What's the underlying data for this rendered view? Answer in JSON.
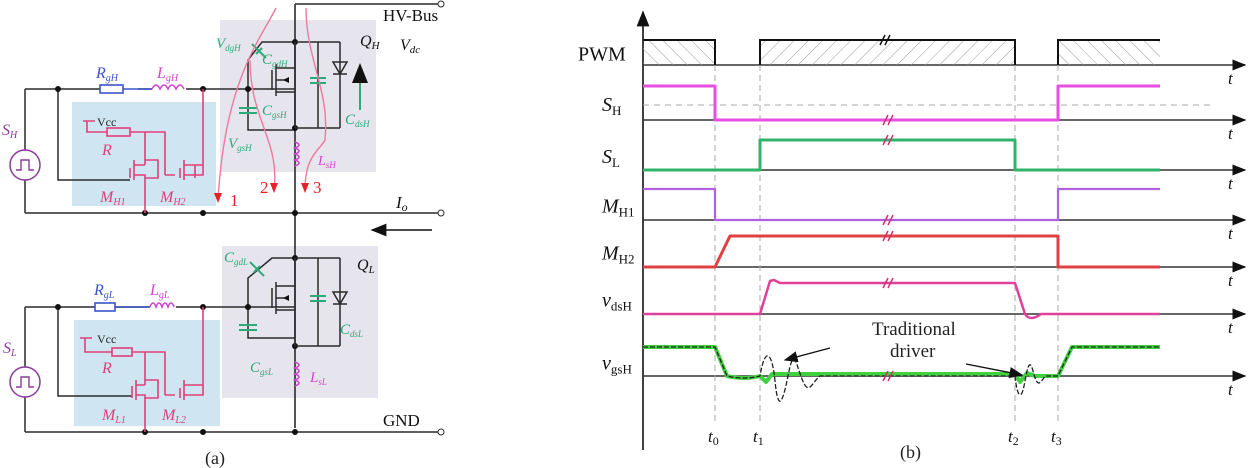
{
  "colors": {
    "wire": "#2a2a2a",
    "driver_pink": "#e0407a",
    "gate_resistor_blue": "#3a55c8",
    "gate_inductor_magenta": "#d046d0",
    "capacitor_green": "#2daa7a",
    "current_path_red": "#e8202a",
    "current_path_pink": "#ee7aa0",
    "driver_box": "#cfe6f2",
    "mosfet_box": "#e6e4ec",
    "trace_SH": "#e84fe0",
    "trace_SL": "#2fb56a",
    "trace_MH1": "#b060e0",
    "trace_MH2": "#e04040",
    "trace_vdsH": "#e0409a",
    "trace_vgsH": "#40d040",
    "traditional_driver": "#222222"
  },
  "panel_a": {
    "caption": "(a)",
    "bus_top": "HV-Bus",
    "bus_bottom": "GND",
    "vdc_label": {
      "main": "V",
      "sub": "dc"
    },
    "output_current": {
      "main": "I",
      "sub": "o"
    },
    "high_side": {
      "source": {
        "main": "S",
        "sub": "H"
      },
      "gate_resistor": {
        "main": "R",
        "sub": "gH"
      },
      "gate_inductor": {
        "main": "L",
        "sub": "gH"
      },
      "vcc": "Vcc",
      "resistor": "R",
      "mosfet1": {
        "main": "M",
        "sub": "H1"
      },
      "mosfet2": {
        "main": "M",
        "sub": "H2"
      },
      "switch": {
        "main": "Q",
        "sub": "H"
      },
      "cgd": {
        "main": "C",
        "sub": "gdH"
      },
      "cgs": {
        "main": "C",
        "sub": "gsH"
      },
      "cds": {
        "main": "C",
        "sub": "dsH"
      },
      "vdg": {
        "main": "V",
        "sub": "dgH"
      },
      "vgs": {
        "main": "V",
        "sub": "gsH"
      },
      "source_inductor": {
        "main": "L",
        "sub": "sH"
      }
    },
    "low_side": {
      "source": {
        "main": "S",
        "sub": "L"
      },
      "gate_resistor": {
        "main": "R",
        "sub": "gL"
      },
      "gate_inductor": {
        "main": "L",
        "sub": "gL"
      },
      "vcc": "Vcc",
      "resistor": "R",
      "mosfet1": {
        "main": "M",
        "sub": "L1"
      },
      "mosfet2": {
        "main": "M",
        "sub": "L2"
      },
      "switch": {
        "main": "Q",
        "sub": "L"
      },
      "cgd": {
        "main": "C",
        "sub": "gdL"
      },
      "cgs": {
        "main": "C",
        "sub": "gsL"
      },
      "cds": {
        "main": "C",
        "sub": "dsL"
      },
      "source_inductor": {
        "main": "L",
        "sub": "sL"
      }
    },
    "current_paths": [
      "1",
      "2",
      "3"
    ]
  },
  "panel_b": {
    "caption": "(b)",
    "time_axis_label": "t",
    "time_markers": [
      {
        "main": "t",
        "sub": "0"
      },
      {
        "main": "t",
        "sub": "1"
      },
      {
        "main": "t",
        "sub": "2"
      },
      {
        "main": "t",
        "sub": "3"
      }
    ],
    "signals": [
      {
        "id": "PWM",
        "label": {
          "main": "PWM",
          "sub": ""
        },
        "color_key": "wire"
      },
      {
        "id": "SH",
        "label": {
          "main": "S",
          "sub": "H"
        },
        "color_key": "trace_SH"
      },
      {
        "id": "SL",
        "label": {
          "main": "S",
          "sub": "L"
        },
        "color_key": "trace_SL"
      },
      {
        "id": "MH1",
        "label": {
          "main": "M",
          "sub": "H1"
        },
        "color_key": "trace_MH1"
      },
      {
        "id": "MH2",
        "label": {
          "main": "M",
          "sub": "H2"
        },
        "color_key": "trace_MH2"
      },
      {
        "id": "vdsH",
        "label": {
          "main": "v",
          "sub": "dsH"
        },
        "color_key": "trace_vdsH"
      },
      {
        "id": "vgsH",
        "label": {
          "main": "v",
          "sub": "gsH"
        },
        "color_key": "trace_vgsH"
      }
    ],
    "annotation": {
      "line1": "Traditional",
      "line2": "driver"
    }
  }
}
